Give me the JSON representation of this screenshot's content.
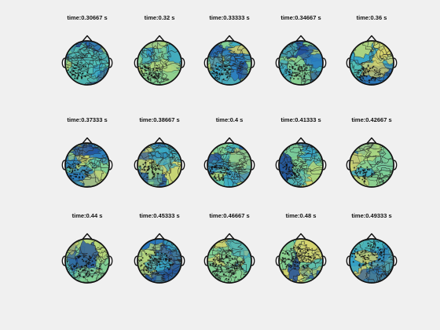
{
  "figure": {
    "background": "#f0f0f0",
    "colormap": [
      "#1f4e9c",
      "#2a7bbf",
      "#36a5c7",
      "#54c0b5",
      "#82cf95",
      "#b9d87a",
      "#dcd56c"
    ],
    "marker_color": "#111111",
    "outline_color": "#111111"
  },
  "panels": [
    {
      "title": "time:0.30667 s",
      "seed": 1,
      "cluster": "lower-left"
    },
    {
      "title": "time:0.32 s",
      "seed": 2,
      "cluster": "lower-left"
    },
    {
      "title": "time:0.33333 s",
      "seed": 3,
      "cluster": "lower-left"
    },
    {
      "title": "time:0.34667 s",
      "seed": 4,
      "cluster": "lower-center"
    },
    {
      "title": "time:0.36 s",
      "seed": 5,
      "cluster": "lower-center"
    },
    {
      "title": "time:0.37333 s",
      "seed": 6,
      "cluster": "left-split"
    },
    {
      "title": "time:0.38667 s",
      "seed": 7,
      "cluster": "left-split"
    },
    {
      "title": "time:0.4 s",
      "seed": 8,
      "cluster": "left-split"
    },
    {
      "title": "time:0.41333 s",
      "seed": 9,
      "cluster": "left-split"
    },
    {
      "title": "time:0.42667 s",
      "seed": 10,
      "cluster": "left-split"
    },
    {
      "title": "time:0.44 s",
      "seed": 11,
      "cluster": "broad-left"
    },
    {
      "title": "time:0.45333 s",
      "seed": 12,
      "cluster": "broad-left"
    },
    {
      "title": "time:0.46667 s",
      "seed": 13,
      "cluster": "broad-left"
    },
    {
      "title": "time:0.48 s",
      "seed": 14,
      "cluster": "broad-top-left"
    },
    {
      "title": "time:0.49333 s",
      "seed": 15,
      "cluster": "broad-top-left"
    }
  ]
}
